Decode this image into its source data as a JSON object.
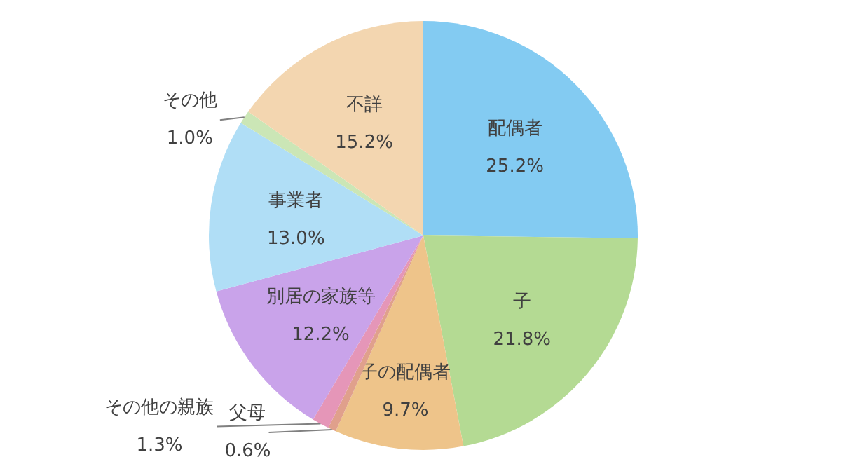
{
  "chart_data": {
    "type": "pie",
    "categories": [
      "配偶者",
      "子",
      "子の配偶者",
      "父母",
      "その他の親族",
      "別居の家族等",
      "事業者",
      "その他",
      "不詳"
    ],
    "values": [
      25.2,
      21.8,
      9.7,
      0.6,
      1.3,
      12.2,
      13.0,
      1.0,
      15.2
    ],
    "value_labels": [
      "25.2%",
      "21.8%",
      "9.7%",
      "0.6%",
      "1.3%",
      "12.2%",
      "13.0%",
      "1.0%",
      "15.2%"
    ],
    "colors": [
      "#83cbf2",
      "#b4da93",
      "#eec48a",
      "#e0a08c",
      "#e596b8",
      "#c9a3ea",
      "#b0def6",
      "#cbe6b6",
      "#f3d6b0"
    ]
  }
}
